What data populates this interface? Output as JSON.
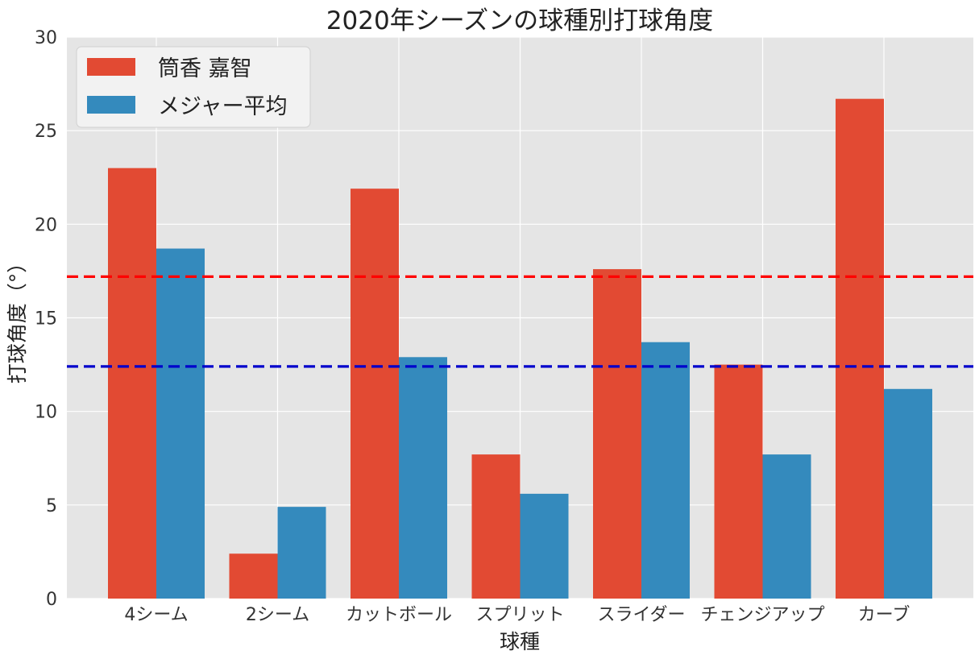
{
  "chart_data": {
    "type": "bar",
    "title": "2020年シーズンの球種別打球角度",
    "xlabel": "球種",
    "ylabel": "打球角度（°）",
    "categories": [
      "4シーム",
      "2シーム",
      "カットボール",
      "スプリット",
      "スライダー",
      "チェンジアップ",
      "カーブ"
    ],
    "series": [
      {
        "name": "筒香 嘉智",
        "color": "#e24a33",
        "values": [
          23.0,
          2.4,
          21.9,
          7.7,
          17.6,
          12.5,
          26.7
        ]
      },
      {
        "name": "メジャー平均",
        "color": "#348abd",
        "values": [
          18.7,
          4.9,
          12.9,
          5.6,
          13.7,
          7.7,
          11.2
        ]
      }
    ],
    "reference_lines": [
      {
        "value": 17.2,
        "color": "#ff0000",
        "style": "dashed"
      },
      {
        "value": 12.4,
        "color": "#0000cc",
        "style": "dashed"
      }
    ],
    "ylim": [
      0,
      30
    ],
    "yticks": [
      0,
      5,
      10,
      15,
      20,
      25,
      30
    ],
    "grid": true,
    "background": "#e5e5e5",
    "legend_position": "top-left"
  }
}
